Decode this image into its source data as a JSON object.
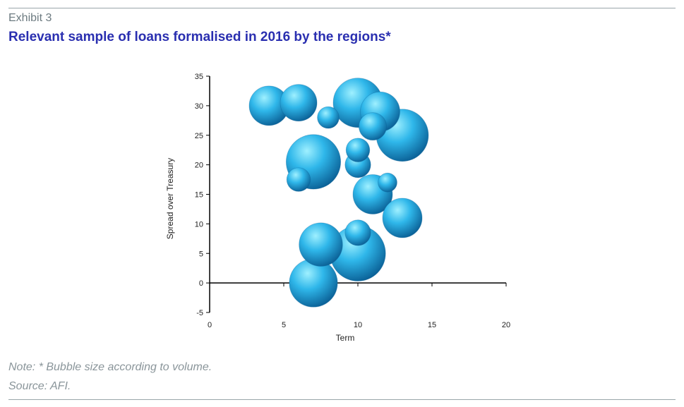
{
  "exhibit_label": "Exhibit 3",
  "title": "Relevant sample of loans formalised in 2016 by the regions*",
  "note": "Note: * Bubble size according to volume.",
  "source": "Source: AFI.",
  "colors": {
    "title": "#2a2fb0",
    "bubble_light": "#9ff0ff",
    "bubble_mid": "#2fb7ea",
    "bubble_dark": "#0a5f95",
    "axis": "#000000"
  },
  "chart_data": {
    "type": "scatter",
    "subtype": "bubble",
    "title": "",
    "xlabel": "Term",
    "ylabel": "Spread over Treasury",
    "xlim": [
      0,
      20
    ],
    "ylim": [
      -5,
      35
    ],
    "x_ticks": [
      0,
      5,
      10,
      15,
      20
    ],
    "y_ticks": [
      -5,
      0,
      5,
      10,
      15,
      20,
      25,
      30,
      35
    ],
    "x_tick_labels": [
      "0",
      "5",
      "10",
      "15",
      "20"
    ],
    "y_tick_labels": [
      "-5",
      "0",
      "5",
      "10",
      "15",
      "20",
      "25",
      "30",
      "35"
    ],
    "grid": false,
    "legend": "none",
    "points": [
      {
        "x": 4.0,
        "y": 30.0,
        "size": 1.0
      },
      {
        "x": 6.0,
        "y": 30.5,
        "size": 0.93
      },
      {
        "x": 8.0,
        "y": 28.0,
        "size": 0.55
      },
      {
        "x": 10.0,
        "y": 30.5,
        "size": 1.25
      },
      {
        "x": 11.5,
        "y": 29.0,
        "size": 1.0
      },
      {
        "x": 11.0,
        "y": 26.5,
        "size": 0.7
      },
      {
        "x": 13.0,
        "y": 25.0,
        "size": 1.32
      },
      {
        "x": 7.0,
        "y": 20.5,
        "size": 1.38
      },
      {
        "x": 6.0,
        "y": 17.5,
        "size": 0.6
      },
      {
        "x": 10.0,
        "y": 22.5,
        "size": 0.6
      },
      {
        "x": 10.0,
        "y": 20.0,
        "size": 0.65
      },
      {
        "x": 12.0,
        "y": 17.0,
        "size": 0.48
      },
      {
        "x": 11.0,
        "y": 15.0,
        "size": 1.0
      },
      {
        "x": 13.0,
        "y": 11.0,
        "size": 1.0
      },
      {
        "x": 10.0,
        "y": 8.5,
        "size": 0.65
      },
      {
        "x": 7.5,
        "y": 6.5,
        "size": 1.1
      },
      {
        "x": 10.0,
        "y": 5.0,
        "size": 1.4
      },
      {
        "x": 7.0,
        "y": 0.0,
        "size": 1.22
      }
    ]
  }
}
